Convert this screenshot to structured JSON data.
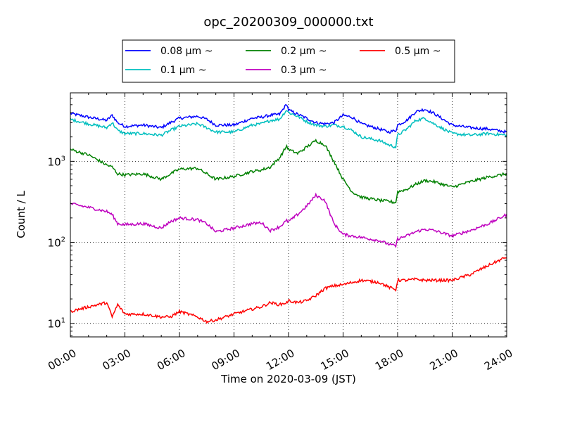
{
  "chart_data": {
    "type": "line",
    "title": "opc_20200309_000000.txt",
    "xlabel": "Time on 2020-03-09 (JST)",
    "ylabel": "Count / L",
    "x_unit": "hours",
    "xlim": [
      0,
      24
    ],
    "ylim": [
      6.8,
      7000
    ],
    "y_scale": "log",
    "grid": true,
    "legend_position": "top-center",
    "x_tick_values": [
      0,
      3,
      6,
      9,
      12,
      15,
      18,
      21,
      24
    ],
    "x_tick_labels": [
      "00:00",
      "03:00",
      "06:00",
      "09:00",
      "12:00",
      "15:00",
      "18:00",
      "21:00",
      "24:00"
    ],
    "y_tick_values": [
      10,
      100,
      1000
    ],
    "y_tick_labels": [
      {
        "base": "10",
        "exp": "1"
      },
      {
        "base": "10",
        "exp": "2"
      },
      {
        "base": "10",
        "exp": "3"
      }
    ],
    "x": [
      0,
      1,
      2,
      2.3,
      2.6,
      3,
      4,
      5,
      5.5,
      6,
      7,
      7.5,
      8,
      9,
      10,
      10.5,
      11,
      11.5,
      11.9,
      12,
      12.5,
      13,
      13.5,
      14,
      14.5,
      15,
      15.5,
      16,
      17,
      17.5,
      17.9,
      18,
      18.5,
      19,
      19.5,
      20,
      21,
      22,
      23,
      24
    ],
    "series": [
      {
        "name": "0.08 μm ~",
        "color": "#0000ff",
        "values": [
          3900,
          3500,
          3200,
          3700,
          3000,
          2700,
          2800,
          2600,
          3000,
          3400,
          3600,
          3300,
          2800,
          2800,
          3400,
          3500,
          3700,
          3800,
          5100,
          4300,
          3800,
          3400,
          3000,
          2900,
          3000,
          3700,
          3500,
          2900,
          2500,
          2300,
          2400,
          2800,
          3200,
          4100,
          4400,
          3900,
          2800,
          2600,
          2500,
          2300
        ]
      },
      {
        "name": "0.1 μm ~",
        "color": "#00bfbf",
        "values": [
          3300,
          2900,
          2600,
          3000,
          2400,
          2200,
          2200,
          2100,
          2400,
          2700,
          2900,
          2600,
          2300,
          2300,
          2800,
          2900,
          3200,
          3300,
          4300,
          4000,
          3600,
          3100,
          2800,
          2700,
          2800,
          2700,
          2400,
          2000,
          1800,
          1600,
          1500,
          2100,
          2500,
          3200,
          3400,
          2900,
          2200,
          2100,
          2200,
          2100
        ]
      },
      {
        "name": "0.2 μm ~",
        "color": "#008000",
        "values": [
          1400,
          1200,
          900,
          850,
          700,
          680,
          700,
          600,
          700,
          800,
          820,
          700,
          600,
          650,
          750,
          780,
          850,
          1100,
          1550,
          1400,
          1250,
          1500,
          1800,
          1600,
          1000,
          600,
          420,
          360,
          330,
          320,
          310,
          420,
          450,
          520,
          580,
          560,
          480,
          560,
          640,
          700
        ]
      },
      {
        "name": "0.3 μm ~",
        "color": "#bf00bf",
        "values": [
          300,
          270,
          240,
          220,
          170,
          165,
          170,
          150,
          180,
          200,
          190,
          170,
          135,
          150,
          170,
          175,
          140,
          155,
          185,
          180,
          220,
          280,
          380,
          330,
          170,
          125,
          120,
          115,
          105,
          95,
          90,
          110,
          120,
          135,
          145,
          140,
          120,
          140,
          170,
          220
        ]
      },
      {
        "name": "0.5 μm ~",
        "color": "#ff0000",
        "values": [
          14,
          16,
          18,
          12,
          17,
          13,
          13,
          12,
          12,
          14,
          12,
          10.5,
          11,
          13,
          15,
          16,
          18,
          17,
          18,
          19,
          18,
          19,
          22,
          27,
          29,
          30,
          32,
          34,
          32,
          28,
          26,
          34,
          34,
          35,
          34,
          34,
          34,
          40,
          52,
          66
        ]
      }
    ]
  }
}
